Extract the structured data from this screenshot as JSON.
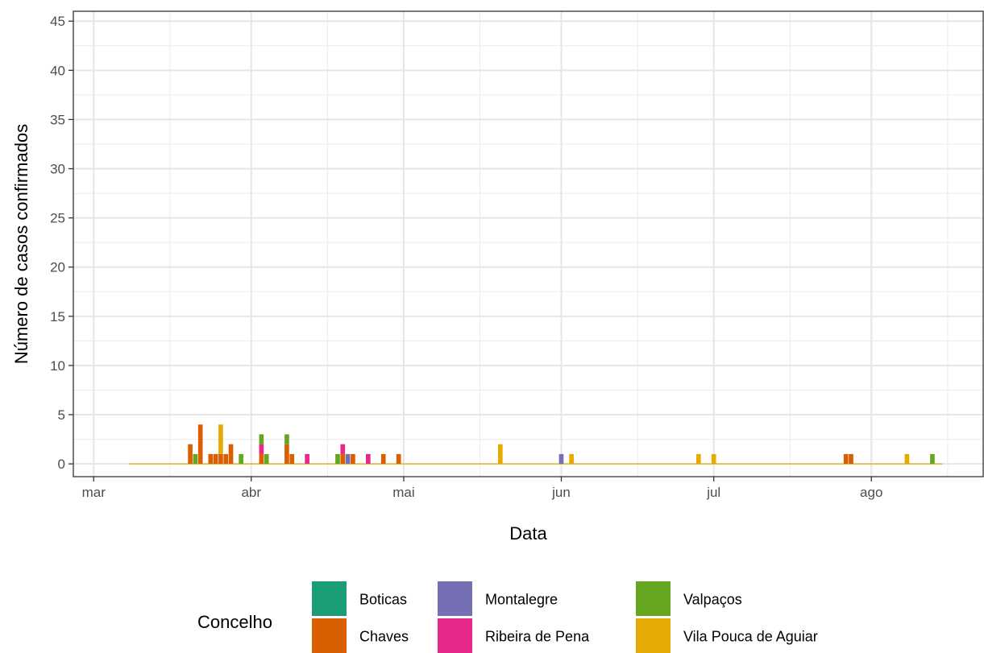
{
  "chart_data": {
    "type": "bar",
    "stacked": true,
    "title": "",
    "xlabel": "Data",
    "ylabel": "Número de casos confirmados",
    "xlim": [
      "2020-02-26",
      "2020-08-23"
    ],
    "ylim": [
      -1.3,
      46
    ],
    "y_ticks": [
      0,
      5,
      10,
      15,
      20,
      25,
      30,
      35,
      40,
      45
    ],
    "x_ticks": [
      {
        "date": "2020-03-01",
        "label": "mar"
      },
      {
        "date": "2020-04-01",
        "label": "abr"
      },
      {
        "date": "2020-05-01",
        "label": "mai"
      },
      {
        "date": "2020-06-01",
        "label": "jun"
      },
      {
        "date": "2020-07-01",
        "label": "jul"
      },
      {
        "date": "2020-08-01",
        "label": "ago"
      }
    ],
    "x_minor_ticks": [
      "2020-03-16",
      "2020-04-16",
      "2020-05-16",
      "2020-06-16",
      "2020-07-16",
      "2020-08-16"
    ],
    "grid": true,
    "baseline_range": [
      "2020-03-08",
      "2020-08-15"
    ],
    "legend": {
      "title": "Concelho",
      "position": "bottom",
      "entries": [
        {
          "name": "Boticas",
          "color": "#1B9E77"
        },
        {
          "name": "Chaves",
          "color": "#D95F02"
        },
        {
          "name": "Montalegre",
          "color": "#7570B3"
        },
        {
          "name": "Ribeira de Pena",
          "color": "#E7298A"
        },
        {
          "name": "Valpaços",
          "color": "#66A61E"
        },
        {
          "name": "Vila Pouca de Aguiar",
          "color": "#E6AB02"
        }
      ]
    },
    "series": [
      {
        "name": "Boticas",
        "color": "#1B9E77",
        "points": []
      },
      {
        "name": "Chaves",
        "color": "#D95F02",
        "points": [
          {
            "x": "2020-03-20",
            "y": 2
          },
          {
            "x": "2020-03-22",
            "y": 4
          },
          {
            "x": "2020-03-24",
            "y": 1
          },
          {
            "x": "2020-03-25",
            "y": 1
          },
          {
            "x": "2020-03-26",
            "y": 1
          },
          {
            "x": "2020-03-27",
            "y": 1
          },
          {
            "x": "2020-03-28",
            "y": 2
          },
          {
            "x": "2020-04-03",
            "y": 1
          },
          {
            "x": "2020-04-08",
            "y": 2
          },
          {
            "x": "2020-04-09",
            "y": 1
          },
          {
            "x": "2020-04-19",
            "y": 1
          },
          {
            "x": "2020-04-21",
            "y": 1
          },
          {
            "x": "2020-04-27",
            "y": 1
          },
          {
            "x": "2020-04-30",
            "y": 1
          },
          {
            "x": "2020-07-27",
            "y": 1
          },
          {
            "x": "2020-07-28",
            "y": 1
          }
        ]
      },
      {
        "name": "Montalegre",
        "color": "#7570B3",
        "points": [
          {
            "x": "2020-04-20",
            "y": 1
          },
          {
            "x": "2020-06-01",
            "y": 1
          }
        ]
      },
      {
        "name": "Ribeira de Pena",
        "color": "#E7298A",
        "points": [
          {
            "x": "2020-04-03",
            "y": 1
          },
          {
            "x": "2020-04-12",
            "y": 1
          },
          {
            "x": "2020-04-19",
            "y": 1
          },
          {
            "x": "2020-04-24",
            "y": 1
          }
        ]
      },
      {
        "name": "Valpaços",
        "color": "#66A61E",
        "points": [
          {
            "x": "2020-03-21",
            "y": 1
          },
          {
            "x": "2020-03-30",
            "y": 1
          },
          {
            "x": "2020-04-03",
            "y": 1
          },
          {
            "x": "2020-04-04",
            "y": 1
          },
          {
            "x": "2020-04-08",
            "y": 1
          },
          {
            "x": "2020-04-18",
            "y": 1
          },
          {
            "x": "2020-08-13",
            "y": 1
          }
        ]
      },
      {
        "name": "Vila Pouca de Aguiar",
        "color": "#E6AB02",
        "points": [
          {
            "x": "2020-03-26",
            "y": 3
          },
          {
            "x": "2020-05-20",
            "y": 2
          },
          {
            "x": "2020-06-03",
            "y": 1
          },
          {
            "x": "2020-06-28",
            "y": 1
          },
          {
            "x": "2020-07-01",
            "y": 1
          },
          {
            "x": "2020-08-08",
            "y": 1
          }
        ]
      }
    ]
  }
}
